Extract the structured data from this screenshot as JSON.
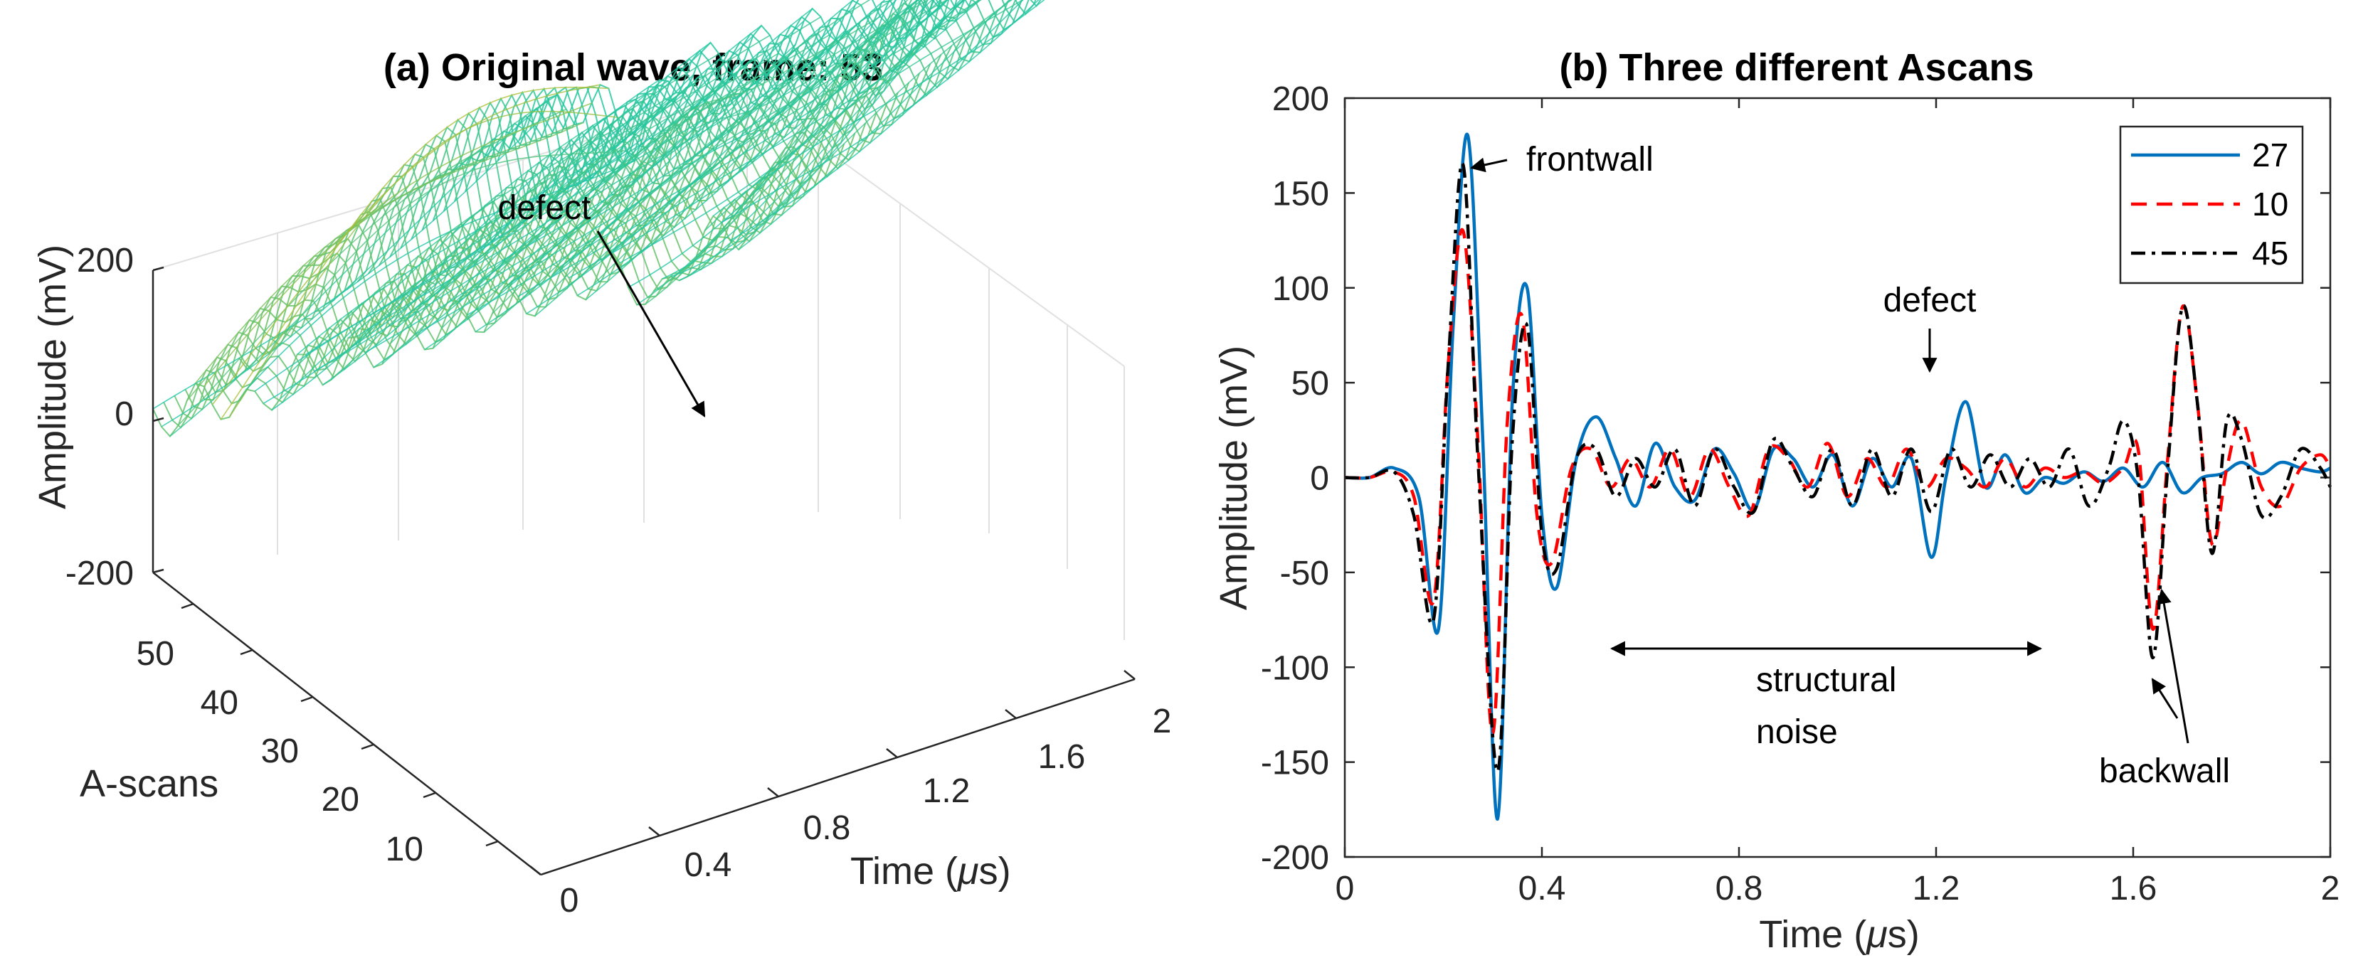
{
  "chart_data": [
    {
      "type": "surface",
      "title": "(a) Original wave, frame: 53",
      "zlabel": "Amplitude (mV)",
      "ylabel": "A-scans",
      "xlabel_pre": "Time (",
      "xlabel_mu": "μ",
      "xlabel_post": "s)",
      "zticks": [
        "200",
        "0",
        "-200"
      ],
      "yticks": [
        "50",
        "40",
        "30",
        "20",
        "10"
      ],
      "xticks": [
        "0",
        "0.4",
        "0.8",
        "1.2",
        "1.6",
        "2"
      ],
      "zlim": [
        -200,
        200
      ],
      "ylim": [
        0,
        60
      ],
      "xlim": [
        0,
        2
      ],
      "annotations": [
        {
          "text": "defect"
        }
      ],
      "colormap": [
        "#3e26a8",
        "#2e87f7",
        "#20c0b4",
        "#1fc8a4",
        "#a5be3b",
        "#f9d12a",
        "#f9fb0e"
      ]
    },
    {
      "type": "line",
      "title": "(b) Three different Ascans",
      "xlabel_pre": "Time (",
      "xlabel_mu": "μ",
      "xlabel_post": "s)",
      "ylabel": "Amplitude (mV)",
      "xlim": [
        0,
        2
      ],
      "ylim": [
        -200,
        200
      ],
      "xticks": [
        0,
        0.4,
        0.8,
        1.2,
        1.6,
        2
      ],
      "xtick_labels": [
        "0",
        "0.4",
        "0.8",
        "1.2",
        "1.6",
        "2"
      ],
      "yticks": [
        200,
        150,
        100,
        50,
        0,
        -50,
        -100,
        -150,
        -200
      ],
      "ytick_labels": [
        "200",
        "150",
        "100",
        "50",
        "0",
        "-50",
        "-100",
        "-150",
        "-200"
      ],
      "legend_position": "top-right",
      "series": [
        {
          "name": "27",
          "color": "#0072bd",
          "style": "solid",
          "x": [
            0,
            0.05,
            0.1,
            0.15,
            0.19,
            0.22,
            0.25,
            0.28,
            0.31,
            0.34,
            0.37,
            0.4,
            0.43,
            0.47,
            0.51,
            0.55,
            0.59,
            0.63,
            0.67,
            0.71,
            0.75,
            0.79,
            0.83,
            0.87,
            0.91,
            0.95,
            0.99,
            1.03,
            1.07,
            1.11,
            1.15,
            1.19,
            1.22,
            1.26,
            1.3,
            1.34,
            1.38,
            1.42,
            1.46,
            1.5,
            1.54,
            1.58,
            1.62,
            1.66,
            1.7,
            1.74,
            1.78,
            1.82,
            1.86,
            1.9,
            1.94,
            1.98,
            2.0
          ],
          "y": [
            0,
            0,
            5,
            -10,
            -80,
            80,
            180,
            20,
            -180,
            40,
            100,
            -20,
            -58,
            10,
            32,
            10,
            -15,
            18,
            -5,
            -12,
            15,
            2,
            -17,
            15,
            10,
            -5,
            12,
            -15,
            10,
            -5,
            10,
            -42,
            0,
            40,
            -5,
            12,
            -8,
            0,
            -3,
            3,
            -2,
            5,
            -5,
            8,
            -8,
            0,
            2,
            8,
            2,
            8,
            5,
            3,
            5
          ]
        },
        {
          "name": "10",
          "color": "#ff0000",
          "style": "dashed",
          "x": [
            0,
            0.05,
            0.1,
            0.14,
            0.18,
            0.21,
            0.24,
            0.27,
            0.3,
            0.33,
            0.36,
            0.39,
            0.42,
            0.46,
            0.5,
            0.54,
            0.58,
            0.62,
            0.66,
            0.7,
            0.74,
            0.78,
            0.82,
            0.86,
            0.9,
            0.94,
            0.98,
            1.02,
            1.06,
            1.1,
            1.14,
            1.18,
            1.22,
            1.26,
            1.3,
            1.34,
            1.38,
            1.42,
            1.46,
            1.5,
            1.54,
            1.58,
            1.61,
            1.64,
            1.67,
            1.7,
            1.73,
            1.76,
            1.79,
            1.82,
            1.86,
            1.9,
            1.94,
            1.98,
            2.0
          ],
          "y": [
            0,
            0,
            3,
            -10,
            -65,
            60,
            130,
            20,
            -135,
            30,
            85,
            -20,
            -45,
            5,
            15,
            -5,
            10,
            -5,
            15,
            -10,
            15,
            -5,
            -20,
            15,
            10,
            -5,
            18,
            -10,
            10,
            -5,
            15,
            -5,
            10,
            5,
            -5,
            10,
            -5,
            5,
            0,
            3,
            -3,
            5,
            15,
            -80,
            10,
            90,
            40,
            -35,
            5,
            30,
            -5,
            -15,
            5,
            12,
            5
          ]
        },
        {
          "name": "45",
          "color": "#000000",
          "style": "dashdot",
          "x": [
            0,
            0.05,
            0.1,
            0.14,
            0.18,
            0.21,
            0.24,
            0.27,
            0.31,
            0.34,
            0.37,
            0.4,
            0.43,
            0.47,
            0.51,
            0.55,
            0.59,
            0.63,
            0.67,
            0.71,
            0.75,
            0.79,
            0.83,
            0.87,
            0.91,
            0.95,
            0.99,
            1.03,
            1.07,
            1.11,
            1.15,
            1.19,
            1.23,
            1.27,
            1.31,
            1.35,
            1.39,
            1.43,
            1.47,
            1.51,
            1.55,
            1.58,
            1.61,
            1.64,
            1.67,
            1.7,
            1.73,
            1.76,
            1.79,
            1.82,
            1.86,
            1.9,
            1.94,
            1.98,
            2.0
          ],
          "y": [
            0,
            0,
            3,
            -20,
            -75,
            60,
            165,
            10,
            -155,
            20,
            80,
            -30,
            -48,
            10,
            15,
            -10,
            10,
            -5,
            15,
            -15,
            15,
            -5,
            -18,
            20,
            5,
            -10,
            15,
            -15,
            15,
            -10,
            15,
            -18,
            15,
            -5,
            12,
            -5,
            10,
            -5,
            15,
            -15,
            5,
            30,
            0,
            -95,
            5,
            90,
            40,
            -40,
            30,
            20,
            -20,
            -10,
            15,
            5,
            -5
          ]
        }
      ],
      "annotations": [
        {
          "text": "frontwall"
        },
        {
          "text": "defect"
        },
        {
          "text": "structural"
        },
        {
          "text": "noise"
        },
        {
          "text": "backwall"
        }
      ]
    }
  ]
}
